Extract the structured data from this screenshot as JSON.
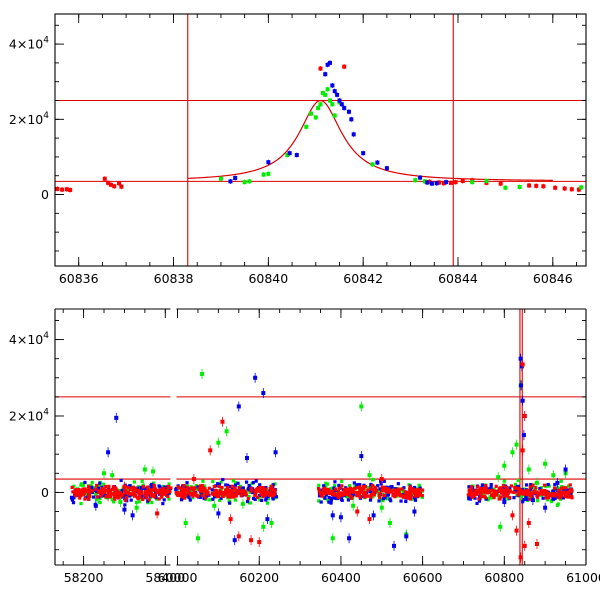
{
  "colors": {
    "red": "#ff0000",
    "green": "#00ee00",
    "blue": "#0000ee",
    "line": "#dd0000",
    "axis": "#000000"
  },
  "chart_data": [
    {
      "type": "scatter",
      "title": "",
      "xlabel": "",
      "ylabel": "",
      "xlim": [
        60835.5,
        60846.7
      ],
      "ylim": [
        -19000,
        48000
      ],
      "x_major_ticks": [
        60836,
        60838,
        60840,
        60842,
        60844,
        60846
      ],
      "x_tick_labels": [
        "60836",
        "60838",
        "60840",
        "60842",
        "60844",
        "60846"
      ],
      "x_minor_step": 0.5,
      "y_major_ticks": [
        0,
        20000,
        40000
      ],
      "y_tick_labels": [
        {
          "mantissa": "0",
          "exponent": ""
        },
        {
          "mantissa": "2×10",
          "exponent": "4"
        },
        {
          "mantissa": "4×10",
          "exponent": "4"
        }
      ],
      "y_minor_step": 5000,
      "reference_lines": {
        "horizontal": [
          3500,
          25000
        ],
        "vertical": [
          60838.3,
          60843.9
        ]
      },
      "model_curve": {
        "name": "microlensing model",
        "baseline": 3500,
        "peak_value": 25000,
        "peak_time": 60841.1,
        "width": 0.55,
        "x_range": [
          60838.3,
          60846.0
        ]
      },
      "series": [
        {
          "name": "red",
          "color": "red",
          "points": [
            [
              60835.55,
              1500
            ],
            [
              60835.65,
              1300
            ],
            [
              60835.75,
              1400
            ],
            [
              60835.82,
              1200
            ],
            [
              60836.55,
              4200
            ],
            [
              60836.62,
              3100
            ],
            [
              60836.68,
              2600
            ],
            [
              60836.75,
              2200
            ],
            [
              60836.85,
              3000
            ],
            [
              60836.9,
              2100
            ],
            [
              60841.1,
              33500
            ],
            [
              60841.6,
              34000
            ],
            [
              60843.4,
              3400
            ],
            [
              60843.6,
              3200
            ],
            [
              60843.7,
              3000
            ],
            [
              60843.85,
              3100
            ],
            [
              60843.95,
              3300
            ],
            [
              60844.1,
              3600
            ],
            [
              60844.3,
              3800
            ],
            [
              60844.6,
              3100
            ],
            [
              60844.9,
              2900
            ],
            [
              60845.5,
              2400
            ],
            [
              60845.65,
              2300
            ],
            [
              60845.8,
              2200
            ],
            [
              60846.05,
              1800
            ],
            [
              60846.25,
              1600
            ],
            [
              60846.4,
              1400
            ],
            [
              60846.55,
              1300
            ]
          ]
        },
        {
          "name": "green",
          "color": "green",
          "points": [
            [
              60839.0,
              4200
            ],
            [
              60839.5,
              3300
            ],
            [
              60839.6,
              3500
            ],
            [
              60839.9,
              5300
            ],
            [
              60840.0,
              5500
            ],
            [
              60840.4,
              10500
            ],
            [
              60840.8,
              18000
            ],
            [
              60840.9,
              21500
            ],
            [
              60841.0,
              20500
            ],
            [
              60841.05,
              23000
            ],
            [
              60841.1,
              24000
            ],
            [
              60841.15,
              27000
            ],
            [
              60841.2,
              26500
            ],
            [
              60841.25,
              28000
            ],
            [
              60841.3,
              25000
            ],
            [
              60841.35,
              24000
            ],
            [
              60841.4,
              21000
            ],
            [
              60841.5,
              24500
            ],
            [
              60842.2,
              8000
            ],
            [
              60843.1,
              3800
            ],
            [
              60843.3,
              3500
            ],
            [
              60844.3,
              3300
            ],
            [
              60844.6,
              3600
            ],
            [
              60845.0,
              1800
            ],
            [
              60845.3,
              2000
            ],
            [
              60846.6,
              1900
            ]
          ]
        },
        {
          "name": "blue",
          "color": "blue",
          "points": [
            [
              60839.2,
              3500
            ],
            [
              60839.3,
              4400
            ],
            [
              60840.0,
              8600
            ],
            [
              60840.45,
              11000
            ],
            [
              60840.6,
              10500
            ],
            [
              60841.2,
              32000
            ],
            [
              60841.25,
              34500
            ],
            [
              60841.3,
              35000
            ],
            [
              60841.35,
              29000
            ],
            [
              60841.4,
              27500
            ],
            [
              60841.45,
              26500
            ],
            [
              60841.5,
              25000
            ],
            [
              60841.55,
              24000
            ],
            [
              60841.6,
              23000
            ],
            [
              60841.7,
              22000
            ],
            [
              60841.75,
              20000
            ],
            [
              60841.8,
              16000
            ],
            [
              60842.0,
              11000
            ],
            [
              60842.3,
              8500
            ],
            [
              60842.5,
              7000
            ],
            [
              60843.2,
              4500
            ],
            [
              60843.35,
              3200
            ],
            [
              60843.45,
              2900
            ],
            [
              60843.55,
              3000
            ],
            [
              60843.75,
              3300
            ]
          ]
        }
      ]
    },
    {
      "type": "scatter",
      "title": "",
      "xlabel": "",
      "ylabel": "",
      "xlim": [
        58130,
        61000
      ],
      "ylim": [
        -19000,
        48000
      ],
      "axis_break": {
        "from": 58420,
        "to": 59990,
        "removed_width": 1570
      },
      "x_major_ticks": [
        58200,
        58400,
        60000,
        60200,
        60400,
        60600,
        60800,
        61000
      ],
      "x_tick_labels": [
        "58200",
        "58400",
        "60000",
        "60200",
        "60400",
        "60600",
        "60800",
        "61000"
      ],
      "x_minor_step": 50,
      "y_major_ticks": [
        0,
        20000,
        40000
      ],
      "y_tick_labels": [
        {
          "mantissa": "0",
          "exponent": ""
        },
        {
          "mantissa": "2×10",
          "exponent": "4"
        },
        {
          "mantissa": "4×10",
          "exponent": "4"
        }
      ],
      "y_minor_step": 5000,
      "reference_lines": {
        "horizontal": [
          3500,
          25000
        ],
        "vertical": [
          60838.3,
          60843.9
        ]
      },
      "season_bands": [
        [
          58170,
          58415
        ],
        [
          59995,
          60245
        ],
        [
          60345,
          60600
        ],
        [
          60712,
          60968
        ]
      ],
      "series": [
        {
          "name": "green",
          "color": "green",
          "points": [
            [
              58250,
              5000
            ],
            [
              58270,
              4500
            ],
            [
              58290,
              -2500
            ],
            [
              58330,
              -4000
            ],
            [
              58350,
              6000
            ],
            [
              58370,
              5500
            ],
            [
              60060,
              31000
            ],
            [
              60100,
              13000
            ],
            [
              60120,
              16000
            ],
            [
              60020,
              -8000
            ],
            [
              60090,
              -3500
            ],
            [
              60160,
              -3000
            ],
            [
              60050,
              -12000
            ],
            [
              60210,
              -9000
            ],
            [
              60230,
              -8000
            ],
            [
              60430,
              -3500
            ],
            [
              60450,
              22500
            ],
            [
              60470,
              4500
            ],
            [
              60500,
              -4000
            ],
            [
              60520,
              -8000
            ],
            [
              60380,
              -12000
            ],
            [
              60560,
              -11000
            ],
            [
              60785,
              4000
            ],
            [
              60790,
              -9000
            ],
            [
              60800,
              7000
            ],
            [
              60820,
              10500
            ],
            [
              60830,
              12500
            ],
            [
              60840,
              28000
            ],
            [
              60860,
              6000
            ],
            [
              60880,
              2500
            ],
            [
              60900,
              7500
            ],
            [
              60920,
              4500
            ],
            [
              60950,
              5000
            ]
          ]
        },
        {
          "name": "blue",
          "color": "blue",
          "points": [
            [
              58280,
              19500
            ],
            [
              58260,
              10500
            ],
            [
              58230,
              -3500
            ],
            [
              58300,
              -4500
            ],
            [
              58320,
              -6000
            ],
            [
              60150,
              22500
            ],
            [
              60190,
              30000
            ],
            [
              60210,
              26000
            ],
            [
              60170,
              9000
            ],
            [
              60100,
              -5500
            ],
            [
              60140,
              -12500
            ],
            [
              60220,
              -7000
            ],
            [
              60240,
              10500
            ],
            [
              60450,
              9500
            ],
            [
              60480,
              -6000
            ],
            [
              60400,
              -6500
            ],
            [
              60420,
              -12000
            ],
            [
              60530,
              -14000
            ],
            [
              60560,
              -11500
            ],
            [
              60580,
              -5000
            ],
            [
              60380,
              -6000
            ],
            [
              60800,
              -2500
            ],
            [
              60840,
              35000
            ],
            [
              60843,
              33000
            ],
            [
              60841,
              28000
            ],
            [
              60845,
              24000
            ],
            [
              60850,
              20000
            ],
            [
              60848,
              15000
            ],
            [
              60870,
              -2000
            ],
            [
              60900,
              -4000
            ],
            [
              60930,
              2500
            ],
            [
              60950,
              6000
            ]
          ]
        },
        {
          "name": "red",
          "color": "red",
          "points": [
            [
              58300,
              1500
            ],
            [
              58380,
              -5500
            ],
            [
              58260,
              -1000
            ],
            [
              60110,
              18500
            ],
            [
              60130,
              -7000
            ],
            [
              60150,
              -11500
            ],
            [
              60180,
              -12500
            ],
            [
              60200,
              -13000
            ],
            [
              60080,
              11000
            ],
            [
              60040,
              3500
            ],
            [
              60500,
              3500
            ],
            [
              60440,
              -5000
            ],
            [
              60470,
              -7000
            ],
            [
              60830,
              -10000
            ],
            [
              60840,
              -17000
            ],
            [
              60850,
              -14000
            ],
            [
              60880,
              -13500
            ],
            [
              60820,
              -6000
            ],
            [
              60860,
              -8000
            ],
            [
              60845,
              33500
            ],
            [
              60850,
              20000
            ],
            [
              60845,
              11000
            ]
          ]
        }
      ]
    }
  ]
}
